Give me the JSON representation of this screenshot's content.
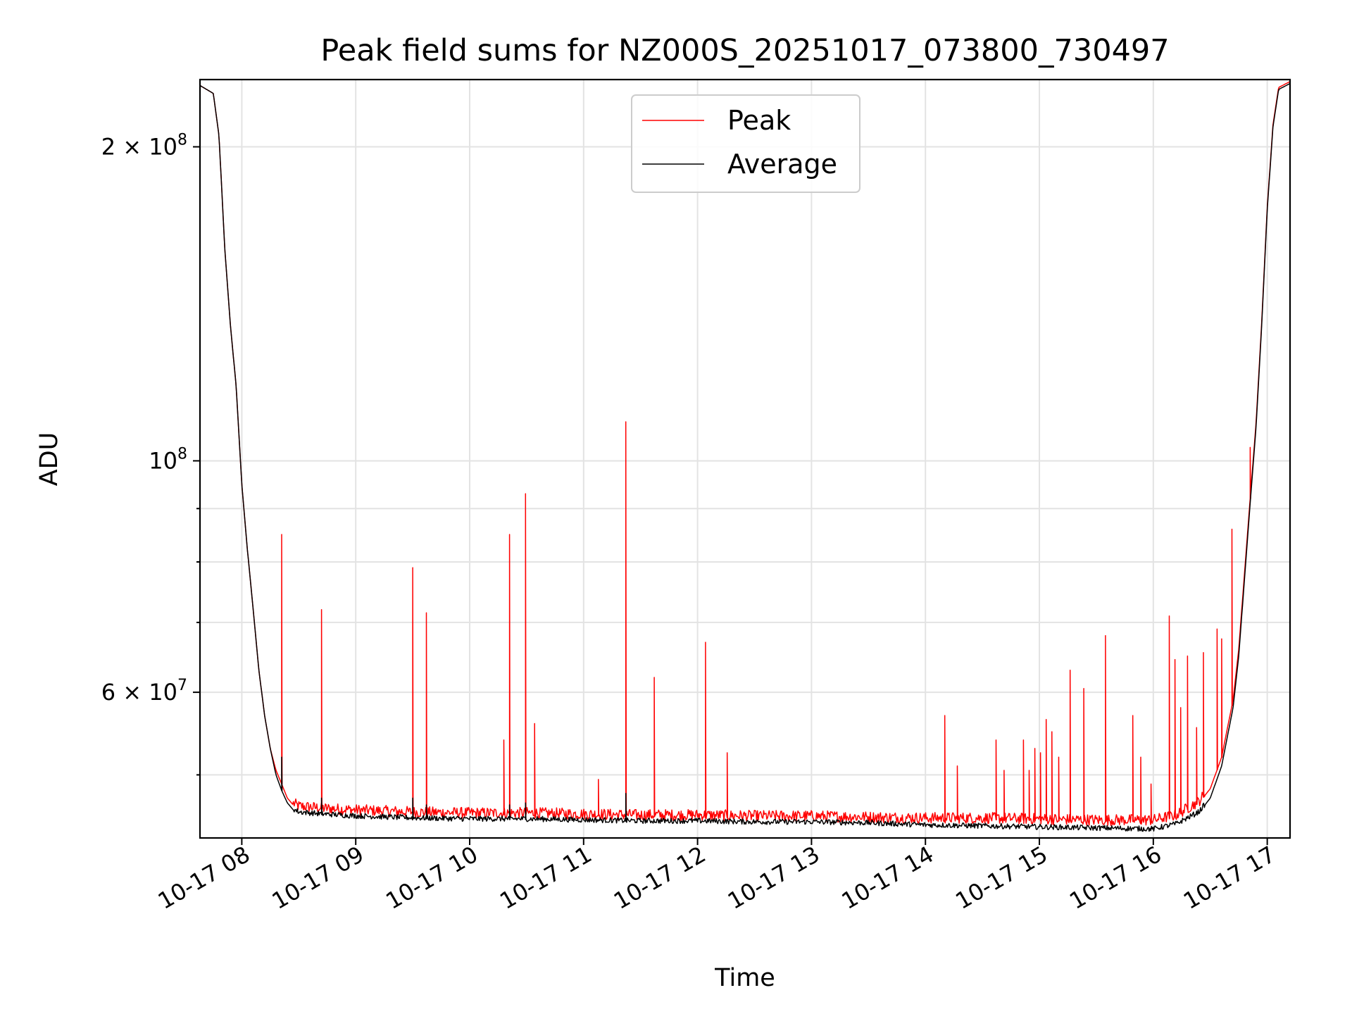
{
  "chart_data": {
    "type": "line",
    "title": "Peak field sums for NZ000S_20251017_073800_730497",
    "xlabel": "Time",
    "ylabel": "ADU",
    "y_scale": "log",
    "grid": true,
    "grid_minor_y": true,
    "legend_placement": "upper-center",
    "x_tick_labels": [
      "10-17 08",
      "10-17 09",
      "10-17 10",
      "10-17 11",
      "10-17 12",
      "10-17 13",
      "10-17 14",
      "10-17 15",
      "10-17 16",
      "10-17 17"
    ],
    "x_ticks_hours": [
      8,
      9,
      10,
      11,
      12,
      13,
      14,
      15,
      16,
      17
    ],
    "xlim_hours": [
      7.633,
      17.2
    ],
    "ylim": [
      43500000,
      232000000
    ],
    "y_major_ticks": [
      {
        "value": 100000000,
        "base": "10",
        "exp": "8"
      },
      {
        "value": 200000000,
        "base": "2 × 10",
        "exp": "8"
      },
      {
        "value": 60000000,
        "base": "6 × 10",
        "exp": "7"
      }
    ],
    "y_minor_ticks": [
      50000000,
      70000000,
      80000000,
      90000000,
      200000000
    ],
    "series": [
      {
        "name": "Peak",
        "color": "#ff0000",
        "baseline": [
          [
            7.633,
            229000000
          ],
          [
            7.75,
            225000000
          ],
          [
            7.8,
            205000000
          ],
          [
            7.85,
            160000000
          ],
          [
            7.9,
            135000000
          ],
          [
            7.95,
            118000000
          ],
          [
            8.0,
            95000000
          ],
          [
            8.05,
            82000000
          ],
          [
            8.1,
            72000000
          ],
          [
            8.15,
            63000000
          ],
          [
            8.2,
            57000000
          ],
          [
            8.25,
            53000000
          ],
          [
            8.3,
            50500000
          ],
          [
            8.35,
            49000000
          ],
          [
            8.4,
            47500000
          ],
          [
            8.45,
            46800000
          ],
          [
            8.5,
            46500000
          ],
          [
            8.7,
            46300000
          ],
          [
            9.0,
            46100000
          ],
          [
            9.5,
            45900000
          ],
          [
            10.0,
            45800000
          ],
          [
            10.5,
            45800000
          ],
          [
            11.0,
            45700000
          ],
          [
            11.5,
            45600000
          ],
          [
            12.0,
            45600000
          ],
          [
            12.5,
            45500000
          ],
          [
            13.0,
            45500000
          ],
          [
            13.5,
            45400000
          ],
          [
            14.0,
            45300000
          ],
          [
            14.5,
            45300000
          ],
          [
            15.0,
            45200000
          ],
          [
            15.5,
            45100000
          ],
          [
            16.0,
            45100000
          ],
          [
            16.2,
            45600000
          ],
          [
            16.4,
            47000000
          ],
          [
            16.5,
            48500000
          ],
          [
            16.6,
            52000000
          ],
          [
            16.7,
            59000000
          ],
          [
            16.75,
            66000000
          ],
          [
            16.8,
            78000000
          ],
          [
            16.85,
            92000000
          ],
          [
            16.9,
            108000000
          ],
          [
            16.95,
            135000000
          ],
          [
            17.0,
            175000000
          ],
          [
            17.05,
            210000000
          ],
          [
            17.1,
            228000000
          ],
          [
            17.2,
            231000000
          ]
        ],
        "spikes": [
          [
            8.35,
            85000000
          ],
          [
            8.7,
            72000000
          ],
          [
            9.5,
            79000000
          ],
          [
            9.62,
            71500000
          ],
          [
            10.3,
            54000000
          ],
          [
            10.35,
            85000000
          ],
          [
            10.49,
            93000000
          ],
          [
            10.57,
            56000000
          ],
          [
            11.13,
            49500000
          ],
          [
            11.37,
            109000000
          ],
          [
            11.62,
            62000000
          ],
          [
            12.07,
            67000000
          ],
          [
            12.26,
            52500000
          ],
          [
            14.17,
            57000000
          ],
          [
            14.28,
            51000000
          ],
          [
            14.62,
            54000000
          ],
          [
            14.69,
            50500000
          ],
          [
            14.86,
            54000000
          ],
          [
            14.91,
            50500000
          ],
          [
            14.96,
            53000000
          ],
          [
            15.01,
            52500000
          ],
          [
            15.06,
            56500000
          ],
          [
            15.11,
            55000000
          ],
          [
            15.17,
            52000000
          ],
          [
            15.27,
            63000000
          ],
          [
            15.39,
            60500000
          ],
          [
            15.58,
            68000000
          ],
          [
            15.82,
            57000000
          ],
          [
            15.89,
            52000000
          ],
          [
            15.98,
            49000000
          ],
          [
            16.14,
            71000000
          ],
          [
            16.19,
            64500000
          ],
          [
            16.24,
            58000000
          ],
          [
            16.3,
            65000000
          ],
          [
            16.38,
            55500000
          ],
          [
            16.44,
            65500000
          ],
          [
            16.56,
            69000000
          ],
          [
            16.6,
            67500000
          ],
          [
            16.69,
            86000000
          ],
          [
            16.85,
            103000000
          ]
        ]
      },
      {
        "name": "Average",
        "color": "#000000",
        "baseline": [
          [
            7.633,
            229000000
          ],
          [
            7.75,
            225000000
          ],
          [
            7.8,
            205000000
          ],
          [
            7.85,
            160000000
          ],
          [
            7.9,
            135000000
          ],
          [
            7.95,
            118000000
          ],
          [
            8.0,
            95000000
          ],
          [
            8.05,
            82000000
          ],
          [
            8.1,
            72000000
          ],
          [
            8.15,
            63000000
          ],
          [
            8.2,
            57000000
          ],
          [
            8.25,
            53000000
          ],
          [
            8.3,
            50000000
          ],
          [
            8.35,
            48300000
          ],
          [
            8.4,
            47000000
          ],
          [
            8.45,
            46300000
          ],
          [
            8.5,
            46000000
          ],
          [
            8.7,
            45800000
          ],
          [
            9.0,
            45600000
          ],
          [
            9.5,
            45400000
          ],
          [
            10.0,
            45300000
          ],
          [
            10.5,
            45300000
          ],
          [
            11.0,
            45200000
          ],
          [
            11.5,
            45100000
          ],
          [
            12.0,
            45100000
          ],
          [
            12.5,
            45000000
          ],
          [
            13.0,
            45000000
          ],
          [
            13.5,
            44900000
          ],
          [
            14.0,
            44700000
          ],
          [
            14.5,
            44600000
          ],
          [
            15.0,
            44500000
          ],
          [
            15.5,
            44400000
          ],
          [
            16.0,
            44300000
          ],
          [
            16.2,
            44800000
          ],
          [
            16.4,
            46000000
          ],
          [
            16.5,
            47500000
          ],
          [
            16.6,
            51000000
          ],
          [
            16.7,
            58000000
          ],
          [
            16.75,
            65000000
          ],
          [
            16.8,
            77000000
          ],
          [
            16.85,
            91000000
          ],
          [
            16.9,
            107000000
          ],
          [
            16.95,
            134000000
          ],
          [
            17.0,
            174000000
          ],
          [
            17.05,
            209000000
          ],
          [
            17.1,
            227000000
          ],
          [
            17.2,
            230000000
          ]
        ],
        "spikes": [
          [
            8.35,
            52000000
          ],
          [
            8.7,
            47500000
          ],
          [
            9.5,
            47500000
          ],
          [
            9.62,
            46800000
          ],
          [
            10.35,
            46800000
          ],
          [
            10.49,
            47000000
          ],
          [
            11.37,
            48000000
          ]
        ]
      }
    ]
  }
}
